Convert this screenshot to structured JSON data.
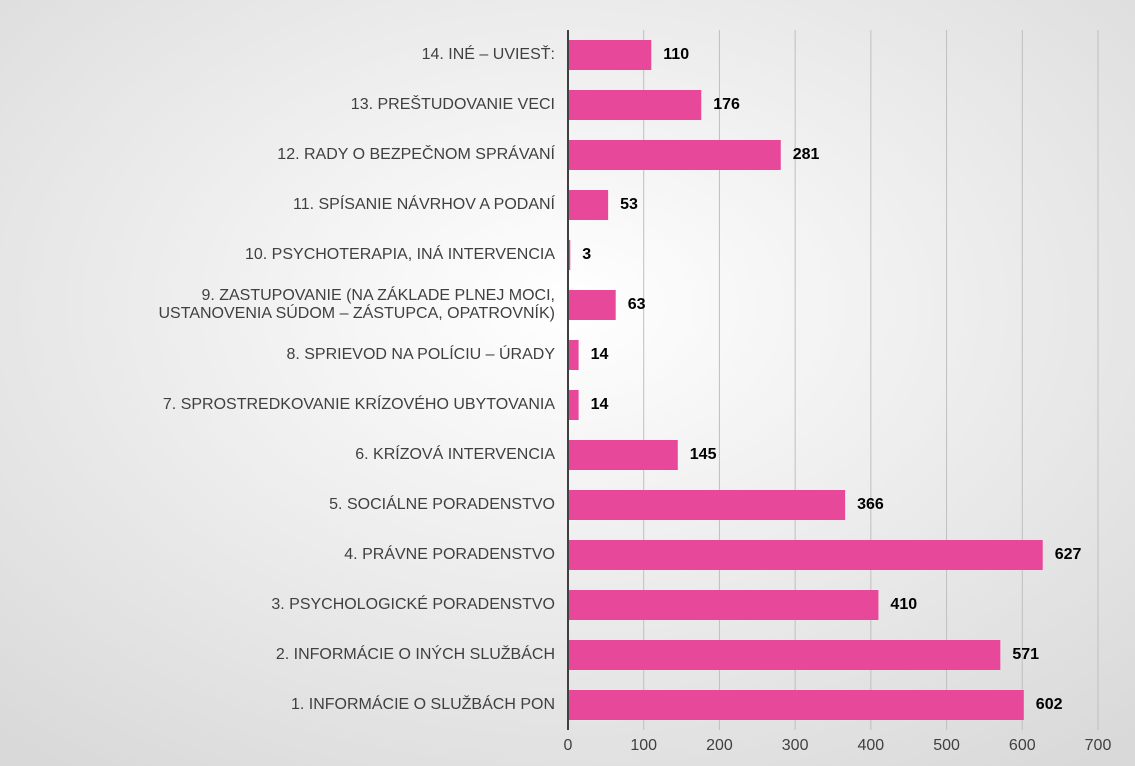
{
  "chart_data": {
    "type": "barh",
    "categories": [
      "1. INFORMÁCIE O SLUŽBÁCH PON",
      "2. INFORMÁCIE O INÝCH SLUŽBÁCH",
      "3. PSYCHOLOGICKÉ PORADENSTVO",
      "4. PRÁVNE PORADENSTVO",
      "5. SOCIÁLNE PORADENSTVO",
      "6. KRÍZOVÁ INTERVENCIA",
      "7. SPROSTREDKOVANIE KRÍZOVÉHO UBYTOVANIA",
      "8. SPRIEVOD NA POLÍCIU – ÚRADY",
      "9. ZASTUPOVANIE (NA ZÁKLADE PLNEJ MOCI,\nUSTANOVENIA SÚDOM – ZÁSTUPCA, OPATROVNÍK)",
      "10. PSYCHOTERAPIA, INÁ INTERVENCIA",
      "11. SPÍSANIE NÁVRHOV A PODANÍ",
      "12. RADY O BEZPEČNOM SPRÁVANÍ",
      "13. PREŠTUDOVANIE VECI",
      "14. INÉ – UVIESŤ:"
    ],
    "values": [
      602,
      571,
      410,
      627,
      366,
      145,
      14,
      14,
      63,
      3,
      53,
      281,
      176,
      110
    ],
    "color": "#e8489a",
    "xlim": [
      0,
      700
    ],
    "xticks": [
      0,
      100,
      200,
      300,
      400,
      500,
      600,
      700
    ],
    "grid": true
  }
}
